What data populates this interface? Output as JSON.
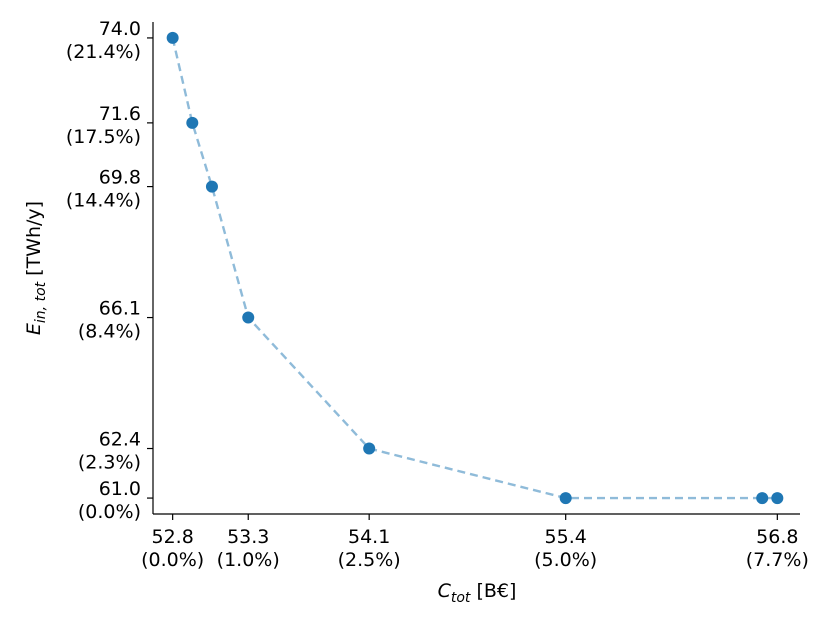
{
  "chart_data": {
    "type": "scatter",
    "title": "",
    "xlabel": {
      "main": "C",
      "sub": "tot",
      "unit": " [B€]"
    },
    "ylabel": {
      "main": "E",
      "sub": "in, tot",
      "unit": " [TWh/y]"
    },
    "xlim": [
      52.67,
      56.95
    ],
    "ylim": [
      60.55,
      74.45
    ],
    "grid": false,
    "legend": "none",
    "marker_color": "#1f77b4",
    "line_color": "#1f77b4",
    "line_style": "dashed",
    "x": [
      52.8,
      52.93,
      53.06,
      53.3,
      54.1,
      55.4,
      56.7,
      56.8
    ],
    "y": [
      74.0,
      71.6,
      69.8,
      66.1,
      62.4,
      61.0,
      61.0,
      61.0
    ],
    "x_ticks": [
      {
        "value": 52.8,
        "label": "52.8",
        "sublabel": "(0.0%)"
      },
      {
        "value": 53.3,
        "label": "53.3",
        "sublabel": "(1.0%)"
      },
      {
        "value": 54.1,
        "label": "54.1",
        "sublabel": "(2.5%)"
      },
      {
        "value": 55.4,
        "label": "55.4",
        "sublabel": "(5.0%)"
      },
      {
        "value": 56.8,
        "label": "56.8",
        "sublabel": "(7.7%)"
      }
    ],
    "y_ticks": [
      {
        "value": 74.0,
        "label": "74.0",
        "sublabel": "(21.4%)"
      },
      {
        "value": 71.6,
        "label": "71.6",
        "sublabel": "(17.5%)"
      },
      {
        "value": 69.8,
        "label": "69.8",
        "sublabel": "(14.4%)"
      },
      {
        "value": 66.1,
        "label": "66.1",
        "sublabel": "(8.4%)"
      },
      {
        "value": 62.4,
        "label": "62.4",
        "sublabel": "(2.3%)"
      },
      {
        "value": 61.0,
        "label": "61.0",
        "sublabel": "(0.0%)"
      }
    ]
  }
}
